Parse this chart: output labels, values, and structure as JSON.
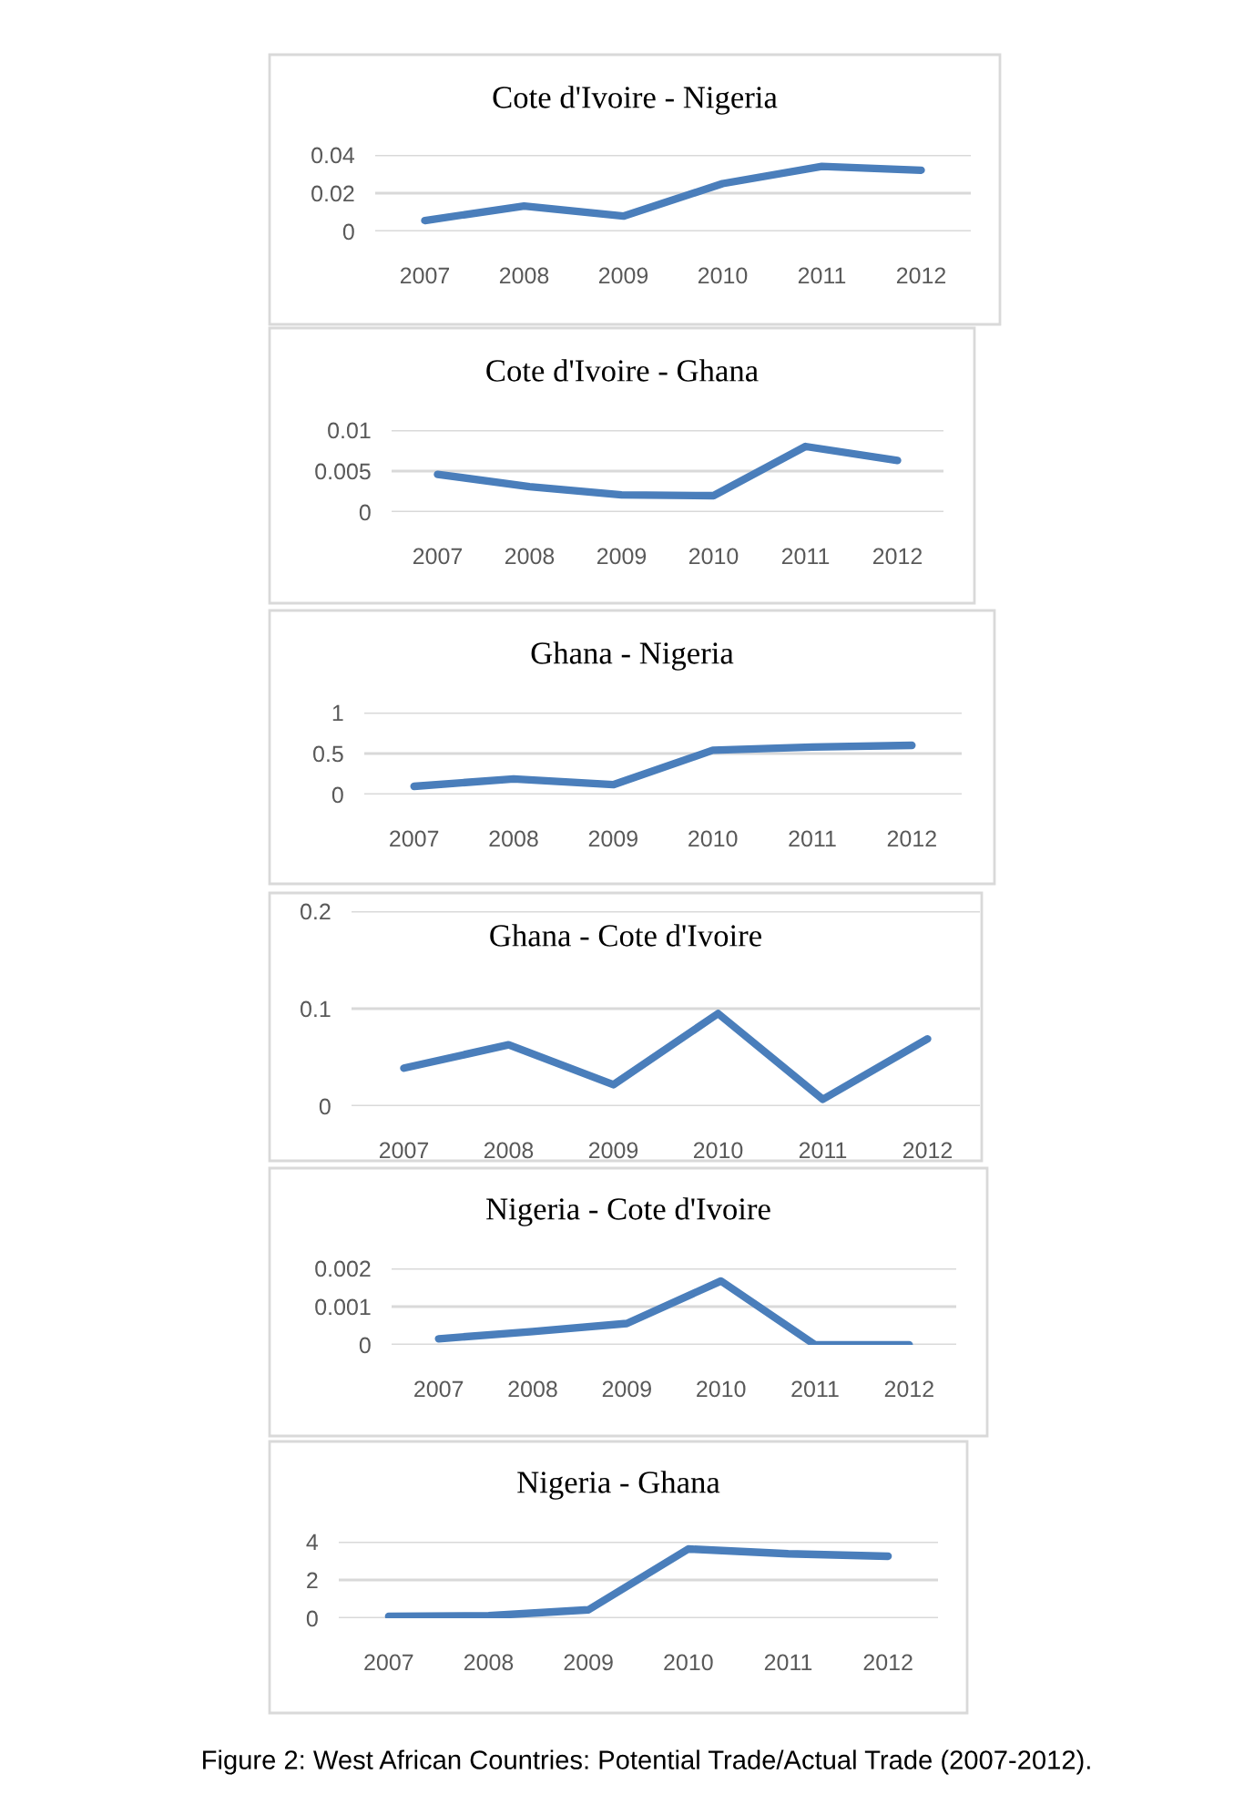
{
  "chart_data": [
    {
      "type": "line",
      "title": "Cote d'Ivoire - Nigeria",
      "categories": [
        "2007",
        "2008",
        "2009",
        "2010",
        "2011",
        "2012"
      ],
      "values": [
        0.0057,
        0.0133,
        0.008,
        0.025,
        0.034,
        0.032
      ],
      "color": "#4a7ebb",
      "ylim": [
        0,
        0.04
      ],
      "yticks": [
        0,
        0.02,
        0.04
      ],
      "grid": "y"
    },
    {
      "type": "line",
      "title": "Cote d'Ivoire - Ghana",
      "categories": [
        "2007",
        "2008",
        "2009",
        "2010",
        "2011",
        "2012"
      ],
      "values": [
        0.0046,
        0.0031,
        0.0021,
        0.002,
        0.008,
        0.0063
      ],
      "color": "#4a7ebb",
      "ylim": [
        0,
        0.01
      ],
      "yticks": [
        0,
        0.005,
        0.01
      ],
      "grid": "y"
    },
    {
      "type": "line",
      "title": "Ghana - Nigeria",
      "categories": [
        "2007",
        "2008",
        "2009",
        "2010",
        "2011",
        "2012"
      ],
      "values": [
        0.1,
        0.19,
        0.12,
        0.54,
        0.58,
        0.6
      ],
      "color": "#4a7ebb",
      "ylim": [
        0,
        1
      ],
      "yticks": [
        0,
        0.5,
        1
      ],
      "grid": "y"
    },
    {
      "type": "line",
      "title": "Ghana - Cote d'Ivoire",
      "categories": [
        "2007",
        "2008",
        "2009",
        "2010",
        "2011",
        "2012"
      ],
      "values": [
        0.039,
        0.063,
        0.022,
        0.095,
        0.007,
        0.069
      ],
      "color": "#4a7ebb",
      "ylim": [
        0,
        0.2
      ],
      "yticks": [
        0,
        0.1,
        0.2
      ],
      "grid": "y"
    },
    {
      "type": "line",
      "title": "Nigeria - Cote d'Ivoire",
      "categories": [
        "2007",
        "2008",
        "2009",
        "2010",
        "2011",
        "2012"
      ],
      "values": [
        0.00016,
        0.00035,
        0.00056,
        0.00167,
        0,
        0
      ],
      "color": "#4a7ebb",
      "ylim": [
        0,
        0.002
      ],
      "yticks": [
        0,
        0.001,
        0.002
      ],
      "grid": "y"
    },
    {
      "type": "line",
      "title": "Nigeria - Ghana",
      "categories": [
        "2007",
        "2008",
        "2009",
        "2010",
        "2011",
        "2012"
      ],
      "values": [
        0.1,
        0.13,
        0.44,
        3.62,
        3.37,
        3.24
      ],
      "color": "#4a7ebb",
      "ylim": [
        0,
        4
      ],
      "yticks": [
        0,
        2,
        4
      ],
      "grid": "y",
      "annotations": [
        "Figure 2: West African Countries: Potential Trade/Actual Trade (2007-2012)."
      ]
    }
  ]
}
